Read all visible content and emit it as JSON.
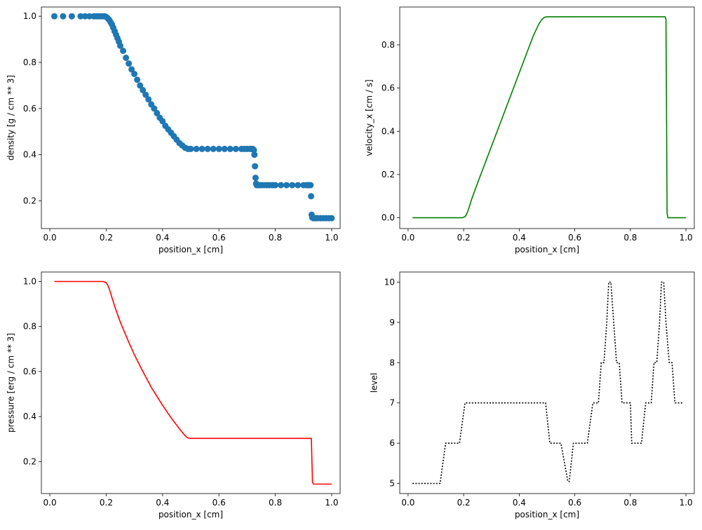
{
  "chart_data": [
    {
      "type": "scatter",
      "xlabel": "position_x [cm]",
      "ylabel": "density [g / cm ** 3]",
      "xlim": [
        -0.03,
        1.03
      ],
      "ylim": [
        0.08,
        1.04
      ],
      "xticks": [
        "0.0",
        "0.2",
        "0.4",
        "0.6",
        "0.8",
        "1.0"
      ],
      "yticks": [
        "0.2",
        "0.4",
        "0.6",
        "0.8",
        "1.0"
      ],
      "grid": false,
      "color": "#1f77b4",
      "marker": "circle",
      "series": [
        {
          "x": [
            0.016,
            0.047,
            0.078,
            0.109,
            0.125,
            0.141,
            0.156,
            0.164,
            0.172,
            0.18,
            0.188,
            0.195,
            0.2,
            0.205,
            0.21,
            0.215,
            0.22,
            0.225,
            0.23,
            0.235,
            0.24,
            0.245,
            0.25,
            0.26,
            0.27,
            0.28,
            0.29,
            0.3,
            0.31,
            0.32,
            0.33,
            0.34,
            0.35,
            0.36,
            0.37,
            0.38,
            0.39,
            0.4,
            0.41,
            0.42,
            0.43,
            0.44,
            0.45,
            0.46,
            0.47,
            0.48,
            0.49,
            0.5,
            0.52,
            0.54,
            0.56,
            0.58,
            0.6,
            0.62,
            0.64,
            0.66,
            0.68,
            0.69,
            0.7,
            0.71,
            0.715,
            0.72,
            0.724,
            0.726,
            0.728,
            0.73,
            0.732,
            0.734,
            0.738,
            0.745,
            0.75,
            0.76,
            0.77,
            0.78,
            0.79,
            0.8,
            0.82,
            0.84,
            0.86,
            0.88,
            0.9,
            0.91,
            0.915,
            0.92,
            0.925,
            0.927,
            0.929,
            0.931,
            0.933,
            0.935,
            0.94,
            0.945,
            0.95,
            0.96,
            0.97,
            0.98,
            0.99,
            1.0
          ],
          "y": [
            1.0,
            1.0,
            1.0,
            1.0,
            1.0,
            1.0,
            1.0,
            1.0,
            1.0,
            1.0,
            1.0,
            1.0,
            0.997,
            0.992,
            0.985,
            0.975,
            0.965,
            0.95,
            0.935,
            0.92,
            0.905,
            0.89,
            0.872,
            0.85,
            0.82,
            0.795,
            0.77,
            0.75,
            0.725,
            0.7,
            0.68,
            0.66,
            0.64,
            0.618,
            0.6,
            0.58,
            0.56,
            0.545,
            0.525,
            0.51,
            0.495,
            0.48,
            0.465,
            0.45,
            0.44,
            0.43,
            0.425,
            0.425,
            0.425,
            0.425,
            0.425,
            0.425,
            0.425,
            0.425,
            0.425,
            0.425,
            0.425,
            0.425,
            0.425,
            0.425,
            0.425,
            0.425,
            0.42,
            0.4,
            0.35,
            0.3,
            0.275,
            0.268,
            0.268,
            0.268,
            0.268,
            0.268,
            0.268,
            0.268,
            0.268,
            0.268,
            0.268,
            0.268,
            0.268,
            0.268,
            0.268,
            0.268,
            0.268,
            0.268,
            0.268,
            0.22,
            0.14,
            0.128,
            0.127,
            0.125,
            0.125,
            0.125,
            0.125,
            0.125,
            0.125,
            0.125,
            0.125,
            0.125
          ]
        }
      ]
    },
    {
      "type": "line",
      "xlabel": "position_x [cm]",
      "ylabel": "velocity_x [cm / s]",
      "xlim": [
        -0.03,
        1.03
      ],
      "ylim": [
        -0.05,
        0.975
      ],
      "xticks": [
        "0.0",
        "0.2",
        "0.4",
        "0.6",
        "0.8",
        "1.0"
      ],
      "yticks": [
        "0.0",
        "0.2",
        "0.4",
        "0.6",
        "0.8"
      ],
      "grid": false,
      "color": "#008000",
      "line_style": "solid",
      "series": [
        {
          "x": [
            0.016,
            0.195,
            0.205,
            0.21,
            0.215,
            0.22,
            0.23,
            0.25,
            0.3,
            0.35,
            0.4,
            0.45,
            0.47,
            0.48,
            0.49,
            0.5,
            0.55,
            0.7,
            0.9,
            0.925,
            0.928,
            0.93,
            0.932,
            0.935,
            0.95,
            1.0
          ],
          "y": [
            0.0,
            0.0,
            0.005,
            0.015,
            0.03,
            0.05,
            0.09,
            0.16,
            0.33,
            0.5,
            0.67,
            0.84,
            0.895,
            0.915,
            0.927,
            0.93,
            0.93,
            0.93,
            0.93,
            0.93,
            0.92,
            0.5,
            0.02,
            0.0,
            0.0,
            0.0
          ]
        }
      ]
    },
    {
      "type": "line",
      "xlabel": "position_x [cm]",
      "ylabel": "pressure [erg / cm ** 3]",
      "xlim": [
        -0.03,
        1.03
      ],
      "ylim": [
        0.058,
        1.042
      ],
      "xticks": [
        "0.0",
        "0.2",
        "0.4",
        "0.6",
        "0.8",
        "1.0"
      ],
      "yticks": [
        "0.2",
        "0.4",
        "0.6",
        "0.8",
        "1.0"
      ],
      "grid": false,
      "color": "#ff0000",
      "line_style": "solid",
      "series": [
        {
          "x": [
            0.016,
            0.19,
            0.2,
            0.205,
            0.21,
            0.215,
            0.22,
            0.23,
            0.25,
            0.28,
            0.3,
            0.33,
            0.36,
            0.4,
            0.43,
            0.46,
            0.48,
            0.49,
            0.5,
            0.6,
            0.8,
            0.928,
            0.93,
            0.932,
            0.935,
            1.0
          ],
          "y": [
            1.0,
            1.0,
            0.995,
            0.985,
            0.97,
            0.95,
            0.93,
            0.89,
            0.82,
            0.73,
            0.675,
            0.6,
            0.53,
            0.45,
            0.395,
            0.345,
            0.315,
            0.305,
            0.303,
            0.303,
            0.303,
            0.303,
            0.2,
            0.11,
            0.1,
            0.1
          ]
        }
      ]
    },
    {
      "type": "line",
      "xlabel": "position_x [cm]",
      "ylabel": "level",
      "xlim": [
        -0.03,
        1.03
      ],
      "ylim": [
        4.75,
        10.25
      ],
      "xticks": [
        "0.0",
        "0.2",
        "0.4",
        "0.6",
        "0.8",
        "1.0"
      ],
      "yticks": [
        "5",
        "6",
        "7",
        "8",
        "9",
        "10"
      ],
      "grid": false,
      "color": "#000000",
      "line_style": "dotted",
      "series": [
        {
          "x": [
            0.016,
            0.115,
            0.135,
            0.185,
            0.205,
            0.495,
            0.51,
            0.55,
            0.575,
            0.58,
            0.595,
            0.645,
            0.665,
            0.685,
            0.695,
            0.705,
            0.715,
            0.722,
            0.73,
            0.74,
            0.75,
            0.76,
            0.77,
            0.8,
            0.805,
            0.84,
            0.855,
            0.875,
            0.885,
            0.895,
            0.905,
            0.912,
            0.92,
            0.928,
            0.94,
            0.95,
            0.96,
            0.97,
            0.99
          ],
          "y": [
            5,
            5,
            6,
            6,
            7,
            7,
            6,
            6,
            5.05,
            5.05,
            6,
            6,
            7,
            7,
            8,
            8,
            9,
            10,
            10,
            9,
            8,
            8,
            7,
            7,
            6,
            6,
            7,
            7,
            8,
            8,
            9,
            10,
            10,
            9,
            8,
            8,
            7,
            7,
            7
          ]
        }
      ]
    }
  ]
}
